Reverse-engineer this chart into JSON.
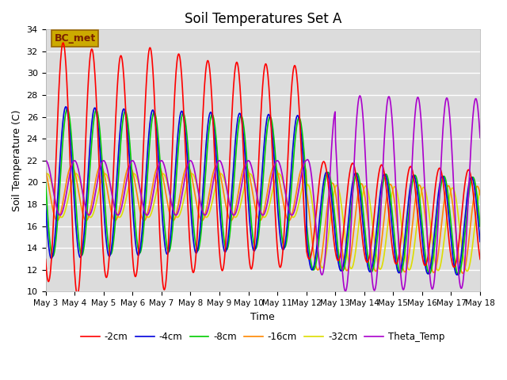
{
  "title": "Soil Temperatures Set A",
  "xlabel": "Time",
  "ylabel": "Soil Temperature (C)",
  "ylim": [
    10,
    34
  ],
  "yticks": [
    10,
    12,
    14,
    16,
    18,
    20,
    22,
    24,
    26,
    28,
    30,
    32,
    34
  ],
  "background_color": "#dcdcdc",
  "annotation_text": "BC_met",
  "annotation_fg": "#7B2000",
  "annotation_bg": "#ccaa00",
  "annotation_edge": "#996600",
  "series": {
    "-2cm": {
      "color": "#ff0000",
      "lw": 1.2
    },
    "-4cm": {
      "color": "#0000dd",
      "lw": 1.2
    },
    "-8cm": {
      "color": "#00cc00",
      "lw": 1.2
    },
    "-16cm": {
      "color": "#ff8800",
      "lw": 1.2
    },
    "-32cm": {
      "color": "#dddd00",
      "lw": 1.2
    },
    "Theta_Temp": {
      "color": "#aa00cc",
      "lw": 1.2
    }
  },
  "x_tick_labels": [
    "May 3",
    "May 4",
    "May 5",
    "May 6",
    "May 7",
    "May 8",
    "May 9",
    "May 10",
    "May 11",
    "May 12",
    "May 13",
    "May 14",
    "May 15",
    "May 16",
    "May 17",
    "May 18"
  ],
  "n_points": 960
}
